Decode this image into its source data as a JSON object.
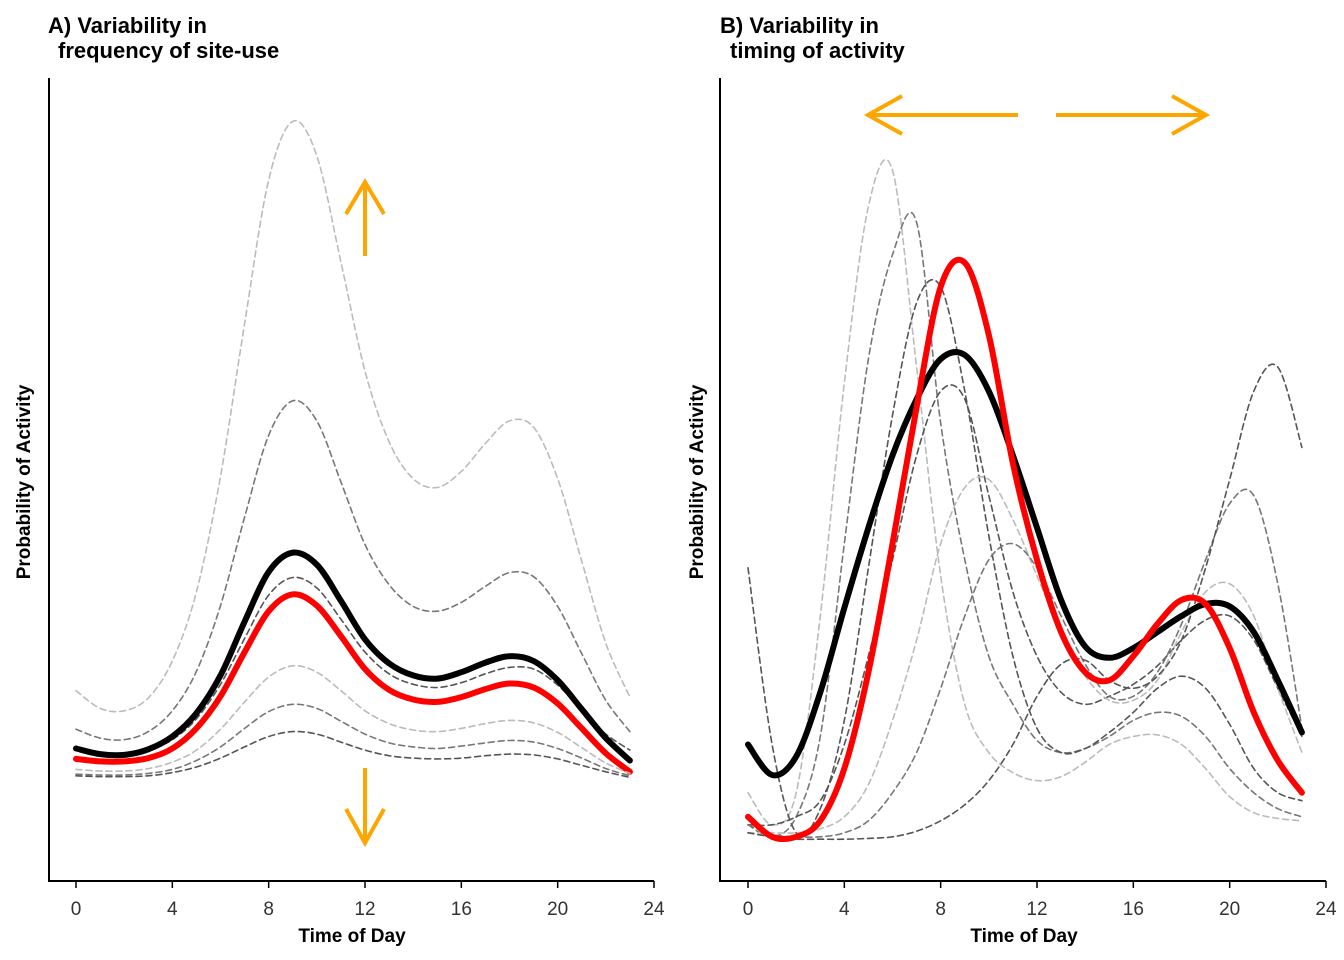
{
  "chart_data": [
    {
      "type": "line",
      "title_line1": "A) Variability in",
      "title_line2": "frequency of site-use",
      "xlabel": "Time of Day",
      "ylabel": "Probability of Activity",
      "xlim": [
        0,
        24
      ],
      "ylim": [
        0,
        1
      ],
      "xticks": [
        "0",
        "4",
        "8",
        "12",
        "16",
        "20",
        "24"
      ],
      "y_tick_labels_shown": false,
      "x": [
        0,
        1,
        2,
        3,
        4,
        5,
        6,
        7,
        8,
        9,
        10,
        11,
        12,
        13,
        14,
        15,
        16,
        17,
        18,
        19,
        20,
        21,
        22,
        23
      ],
      "annotations": [
        "up-arrow at x=12",
        "down-arrow at x=12"
      ],
      "arrow_color": "#FFA500",
      "series": [
        {
          "style": "dashed",
          "color": "#BBBBBB",
          "width": 1.6,
          "values": [
            0.237,
            0.215,
            0.212,
            0.228,
            0.274,
            0.36,
            0.504,
            0.694,
            0.873,
            0.946,
            0.903,
            0.771,
            0.635,
            0.547,
            0.501,
            0.49,
            0.51,
            0.545,
            0.573,
            0.565,
            0.501,
            0.398,
            0.296,
            0.229
          ]
        },
        {
          "style": "dashed",
          "color": "#777777",
          "width": 1.6,
          "values": [
            0.189,
            0.178,
            0.176,
            0.186,
            0.212,
            0.261,
            0.343,
            0.453,
            0.555,
            0.598,
            0.573,
            0.497,
            0.419,
            0.369,
            0.342,
            0.336,
            0.347,
            0.367,
            0.384,
            0.379,
            0.342,
            0.283,
            0.225,
            0.186
          ]
        },
        {
          "style": "dashed",
          "color": "#555555",
          "width": 1.6,
          "values": [
            0.163,
            0.158,
            0.157,
            0.163,
            0.176,
            0.202,
            0.245,
            0.302,
            0.356,
            0.378,
            0.365,
            0.326,
            0.285,
            0.258,
            0.245,
            0.241,
            0.247,
            0.258,
            0.266,
            0.264,
            0.244,
            0.213,
            0.183,
            0.163
          ]
        },
        {
          "style": "solid",
          "color": "#000000",
          "width": 6,
          "values": [
            0.165,
            0.158,
            0.157,
            0.164,
            0.18,
            0.209,
            0.256,
            0.323,
            0.385,
            0.409,
            0.394,
            0.349,
            0.301,
            0.271,
            0.256,
            0.252,
            0.26,
            0.272,
            0.28,
            0.274,
            0.25,
            0.214,
            0.178,
            0.15
          ]
        },
        {
          "style": "solid",
          "color": "#FF0000",
          "width": 6,
          "values": [
            0.152,
            0.149,
            0.149,
            0.153,
            0.165,
            0.19,
            0.23,
            0.285,
            0.336,
            0.357,
            0.343,
            0.305,
            0.264,
            0.238,
            0.226,
            0.223,
            0.229,
            0.239,
            0.246,
            0.241,
            0.221,
            0.19,
            0.159,
            0.136
          ]
        },
        {
          "style": "dashed",
          "color": "#BBBBBB",
          "width": 1.6,
          "values": [
            0.139,
            0.137,
            0.137,
            0.14,
            0.148,
            0.163,
            0.189,
            0.223,
            0.254,
            0.268,
            0.26,
            0.237,
            0.212,
            0.196,
            0.188,
            0.186,
            0.19,
            0.196,
            0.2,
            0.197,
            0.185,
            0.166,
            0.147,
            0.134
          ]
        },
        {
          "style": "dashed",
          "color": "#777777",
          "width": 1.6,
          "values": [
            0.133,
            0.132,
            0.132,
            0.134,
            0.139,
            0.15,
            0.167,
            0.19,
            0.211,
            0.22,
            0.215,
            0.199,
            0.183,
            0.172,
            0.167,
            0.165,
            0.168,
            0.172,
            0.175,
            0.173,
            0.165,
            0.153,
            0.14,
            0.131
          ]
        },
        {
          "style": "dashed",
          "color": "#555555",
          "width": 1.6,
          "values": [
            0.131,
            0.13,
            0.13,
            0.131,
            0.135,
            0.142,
            0.153,
            0.167,
            0.18,
            0.186,
            0.183,
            0.173,
            0.163,
            0.156,
            0.153,
            0.152,
            0.153,
            0.156,
            0.158,
            0.157,
            0.152,
            0.144,
            0.136,
            0.129
          ]
        }
      ]
    },
    {
      "type": "line",
      "title_line1": "B) Variability in",
      "title_line2": "timing of activity",
      "xlabel": "Time of Day",
      "ylabel": "Probability of Activity",
      "xlim": [
        0,
        24
      ],
      "ylim": [
        0,
        1
      ],
      "xticks": [
        "0",
        "4",
        "8",
        "12",
        "16",
        "20",
        "24"
      ],
      "y_tick_labels_shown": false,
      "x": [
        0,
        1,
        2,
        3,
        4,
        5,
        6,
        7,
        8,
        9,
        10,
        11,
        12,
        13,
        14,
        15,
        16,
        17,
        18,
        19,
        20,
        21,
        22,
        23
      ],
      "annotations": [
        "left-arrow",
        "right-arrow"
      ],
      "arrow_color": "#FFA500",
      "series": [
        {
          "style": "dashed",
          "color": "#BBBBBB",
          "width": 1.6,
          "values": [
            0.11,
            0.07,
            0.11,
            0.33,
            0.62,
            0.84,
            0.885,
            0.64,
            0.38,
            0.22,
            0.16,
            0.135,
            0.125,
            0.13,
            0.148,
            0.17,
            0.18,
            0.182,
            0.17,
            0.14,
            0.105,
            0.085,
            0.078,
            0.075
          ]
        },
        {
          "style": "dashed",
          "color": "#777777",
          "width": 1.6,
          "values": [
            0.07,
            0.055,
            0.08,
            0.18,
            0.42,
            0.65,
            0.78,
            0.82,
            0.57,
            0.4,
            0.28,
            0.22,
            0.175,
            0.16,
            0.165,
            0.18,
            0.2,
            0.21,
            0.205,
            0.18,
            0.14,
            0.11,
            0.09,
            0.08
          ]
        },
        {
          "style": "dashed",
          "color": "#555555",
          "width": 1.6,
          "values": [
            0.39,
            0.17,
            0.06,
            0.09,
            0.2,
            0.39,
            0.58,
            0.72,
            0.74,
            0.61,
            0.43,
            0.28,
            0.19,
            0.16,
            0.165,
            0.185,
            0.21,
            0.24,
            0.255,
            0.24,
            0.195,
            0.14,
            0.11,
            0.1
          ]
        },
        {
          "style": "dashed",
          "color": "#555555",
          "width": 1.6,
          "values": [
            0.07,
            0.07,
            0.08,
            0.1,
            0.17,
            0.28,
            0.4,
            0.53,
            0.61,
            0.6,
            0.48,
            0.36,
            0.28,
            0.235,
            0.22,
            0.23,
            0.245,
            0.268,
            0.3,
            0.325,
            0.33,
            0.3,
            0.24,
            0.18
          ]
        },
        {
          "style": "dashed",
          "color": "#BBBBBB",
          "width": 1.6,
          "values": [
            0.06,
            0.06,
            0.06,
            0.065,
            0.08,
            0.12,
            0.2,
            0.3,
            0.42,
            0.49,
            0.5,
            0.45,
            0.38,
            0.31,
            0.255,
            0.225,
            0.225,
            0.25,
            0.31,
            0.36,
            0.37,
            0.33,
            0.24,
            0.16
          ]
        },
        {
          "style": "dashed",
          "color": "#777777",
          "width": 1.6,
          "values": [
            0.07,
            0.058,
            0.055,
            0.055,
            0.06,
            0.075,
            0.11,
            0.16,
            0.24,
            0.33,
            0.4,
            0.42,
            0.39,
            0.33,
            0.27,
            0.23,
            0.23,
            0.26,
            0.32,
            0.4,
            0.47,
            0.48,
            0.37,
            0.19
          ]
        },
        {
          "style": "dashed",
          "color": "#555555",
          "width": 1.6,
          "values": [
            0.06,
            0.055,
            0.052,
            0.052,
            0.052,
            0.053,
            0.055,
            0.062,
            0.075,
            0.095,
            0.125,
            0.17,
            0.23,
            0.27,
            0.275,
            0.25,
            0.24,
            0.255,
            0.3,
            0.39,
            0.5,
            0.61,
            0.64,
            0.54
          ]
        },
        {
          "style": "solid",
          "color": "#000000",
          "width": 6,
          "values": [
            0.17,
            0.132,
            0.155,
            0.235,
            0.34,
            0.44,
            0.53,
            0.6,
            0.65,
            0.655,
            0.61,
            0.53,
            0.44,
            0.35,
            0.292,
            0.278,
            0.29,
            0.31,
            0.33,
            0.345,
            0.342,
            0.31,
            0.25,
            0.185
          ]
        },
        {
          "style": "solid",
          "color": "#FF0000",
          "width": 6,
          "values": [
            0.08,
            0.055,
            0.055,
            0.075,
            0.14,
            0.26,
            0.42,
            0.59,
            0.74,
            0.77,
            0.68,
            0.52,
            0.4,
            0.31,
            0.26,
            0.25,
            0.28,
            0.32,
            0.35,
            0.345,
            0.29,
            0.21,
            0.15,
            0.11
          ]
        }
      ]
    }
  ]
}
